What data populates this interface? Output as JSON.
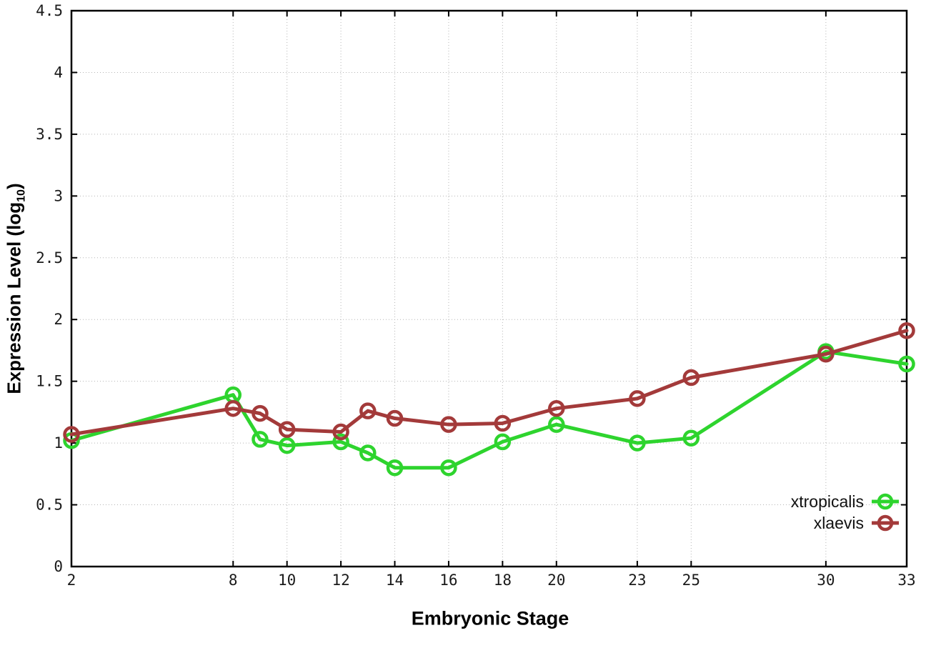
{
  "chart_data": {
    "type": "line",
    "title": "",
    "xlabel": "Embryonic Stage",
    "ylabel": "Expression Level (log10)",
    "ylabel_parts": {
      "main": "Expression Level (log",
      "sub": "10",
      "close": ")"
    },
    "xlim": [
      2,
      33
    ],
    "ylim": [
      0,
      4.5
    ],
    "xticks": [
      2,
      8,
      10,
      12,
      14,
      16,
      18,
      20,
      23,
      25,
      30,
      33
    ],
    "yticks": [
      0,
      0.5,
      1,
      1.5,
      2,
      2.5,
      3,
      3.5,
      4,
      4.5
    ],
    "ytick_labels": [
      "0",
      "0.5",
      "1",
      "1.5",
      "2",
      "2.5",
      "3",
      "3.5",
      "4",
      "4.5"
    ],
    "grid": true,
    "grid_style": "dotted",
    "legend_position": "bottom-right",
    "marker": "open-circle",
    "background_color": "#ffffff",
    "grid_color": "#b5b5b5",
    "axis_color": "#000000",
    "x": [
      2,
      8,
      9,
      10,
      12,
      13,
      14,
      16,
      18,
      20,
      23,
      25,
      30,
      33
    ],
    "series": [
      {
        "name": "xtropicalis",
        "color": "#2ed42e",
        "values": [
          1.02,
          1.39,
          1.03,
          0.98,
          1.01,
          0.92,
          0.8,
          0.8,
          1.01,
          1.15,
          1.0,
          1.04,
          1.74,
          1.64
        ]
      },
      {
        "name": "xlaevis",
        "color": "#a33a3a",
        "values": [
          1.07,
          1.28,
          1.24,
          1.11,
          1.09,
          1.26,
          1.2,
          1.15,
          1.16,
          1.28,
          1.36,
          1.53,
          1.72,
          1.91
        ]
      }
    ]
  }
}
